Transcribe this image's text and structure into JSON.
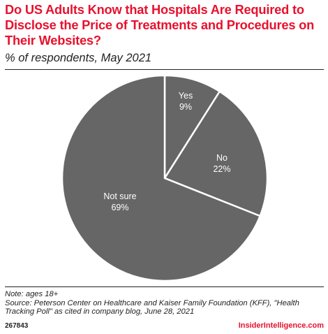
{
  "header": {
    "title": "Do US Adults Know that Hospitals Are Required to Disclose the Price of Treatments and Procedures on Their Websites?",
    "subtitle": "% of respondents, May 2021"
  },
  "chart_data": {
    "type": "pie",
    "title": "Do US Adults Know that Hospitals Are Required to Disclose the Price of Treatments and Procedures on Their Websites?",
    "subtitle": "% of respondents, May 2021",
    "slices": [
      {
        "label": "Yes",
        "value": 9,
        "display": "9%"
      },
      {
        "label": "No",
        "value": 22,
        "display": "22%"
      },
      {
        "label": "Not sure",
        "value": 69,
        "display": "69%"
      }
    ],
    "colors": {
      "fill": "#666666",
      "stroke": "#ffffff",
      "label": "#ffffff"
    }
  },
  "footer": {
    "note": "Note: ages 18+",
    "source": "Source: Peterson Center on Healthcare and Kaiser Family Foundation (KFF), \"Health Tracking Poll\" as cited in company blog, June 28, 2021",
    "chart_id": "267843",
    "brand": "InsiderIntelligence.com"
  },
  "colors": {
    "accent": "#e8112d",
    "text": "#222222"
  }
}
